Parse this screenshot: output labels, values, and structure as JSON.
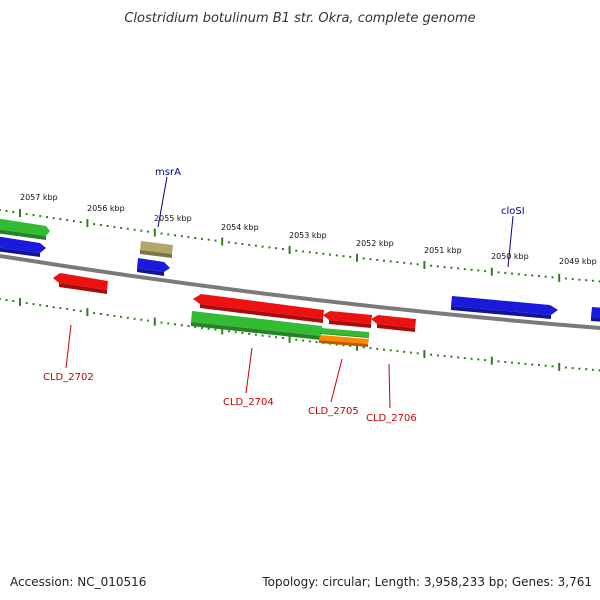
{
  "title": "Clostridium botulinum B1 str. Okra, complete genome",
  "footer": {
    "accession": "Accession: NC_010516",
    "summary": "Topology: circular; Length: 3,958,233 bp; Genes: 3,761"
  },
  "colors": {
    "backbone": "#7a7a7a",
    "tick": "#2e7d1e",
    "red": "#ee1111",
    "green": "#33bb33",
    "blue": "#1a1add",
    "olive": "#b0a868",
    "orange": "#ff8800",
    "label_blue": "#00008b",
    "label_red": "#cc0000"
  },
  "ruler_labels": [
    "2057 kbp",
    "2056 kbp",
    "2055 kbp",
    "2054 kbp",
    "2053 kbp",
    "2052 kbp",
    "2051 kbp",
    "2050 kbp",
    "2049 kbp"
  ],
  "gene_labels": [
    "msrA",
    "cloSI",
    "CLD_2702",
    "CLD_2704",
    "CLD_2705",
    "CLD_2706"
  ]
}
